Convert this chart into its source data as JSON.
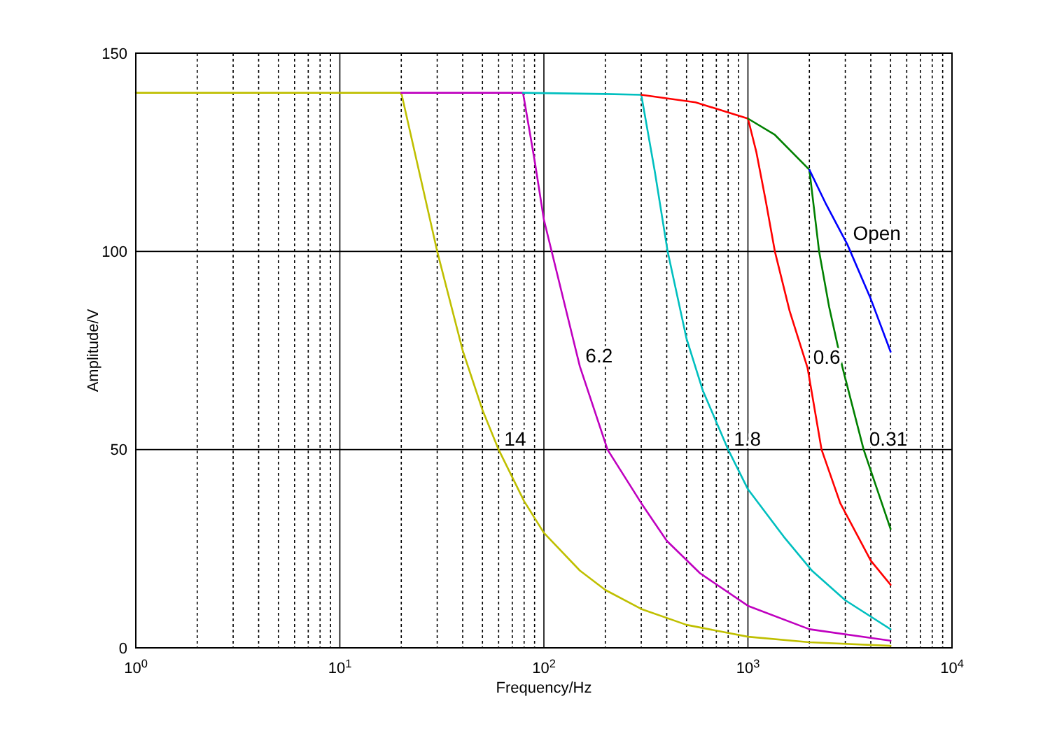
{
  "chart_data": {
    "type": "line",
    "xlabel": "Frequency/Hz",
    "ylabel": "Amplitude/V",
    "log": "x",
    "grid": true,
    "line_style": "solid",
    "marker": "none",
    "xlim": [
      1,
      10000
    ],
    "xticks": [
      {
        "value": 1,
        "label": "10$^{0}$"
      },
      {
        "value": 10,
        "label": "10$^{1}$"
      },
      {
        "value": 100,
        "label": "10$^{2}$"
      },
      {
        "value": 1000,
        "label": "10$^{3}$"
      },
      {
        "value": 10000,
        "label": "10$^{4}$"
      }
    ],
    "ylim": [
      0,
      150
    ],
    "yticks": [
      0,
      50,
      100,
      150
    ],
    "series": [
      {
        "color": "#bfbf00",
        "x": [
          1,
          20,
          25,
          30,
          40,
          50,
          60,
          80,
          100,
          150,
          200,
          300,
          500,
          1000,
          2000,
          5000
        ],
        "values": [
          140,
          140,
          118,
          100,
          75,
          60,
          50,
          37,
          29,
          19.5,
          14.6,
          9.8,
          5.8,
          2.8,
          1.4,
          0.5
        ]
      },
      {
        "color": "#bf00bf",
        "x": [
          20,
          79,
          90,
          100,
          150,
          205,
          300,
          400,
          583,
          1000,
          2000,
          5000
        ],
        "values": [
          140,
          140,
          123,
          108,
          71,
          50,
          36.5,
          27,
          18.8,
          10.6,
          4.7,
          1.8
        ]
      },
      {
        "color": "#00bfbf",
        "x": [
          79,
          200,
          300,
          350,
          404,
          500,
          600,
          800,
          1000,
          1500,
          2065,
          3000,
          5000
        ],
        "values": [
          140,
          139.7,
          139.5,
          120,
          100,
          78,
          65,
          50,
          40,
          28,
          19.4,
          12,
          4.7
        ]
      },
      {
        "color": "#ff0000",
        "x": [
          300,
          553,
          1000,
          1100,
          1220,
          1355,
          1600,
          1960,
          2295,
          2833,
          4000,
          5000
        ],
        "values": [
          139.5,
          137.6,
          133.5,
          125,
          113,
          100,
          85,
          70.6,
          50,
          36.5,
          22,
          15.9
        ]
      },
      {
        "color": "#008000",
        "x": [
          1000,
          1355,
          2000,
          2232,
          2500,
          2910,
          3690,
          5000
        ],
        "values": [
          133.5,
          129.4,
          120.6,
          100,
          86,
          70.6,
          50,
          30
        ]
      },
      {
        "color": "#0000ff",
        "x": [
          2000,
          2420,
          3067,
          4000,
          5000
        ],
        "values": [
          120.6,
          111.8,
          101.8,
          88,
          74.7
        ]
      }
    ],
    "annotations": [
      {
        "text": "Open",
        "x": 3067,
        "y": 101.8
      },
      {
        "text": "6.2",
        "x": 150,
        "y": 71
      },
      {
        "text": "14",
        "x": 60,
        "y": 50
      },
      {
        "text": "1.8",
        "x": 800,
        "y": 50
      },
      {
        "text": "0.6",
        "x": 1960,
        "y": 70.6
      },
      {
        "text": "0.31",
        "x": 3690,
        "y": 50
      }
    ]
  }
}
